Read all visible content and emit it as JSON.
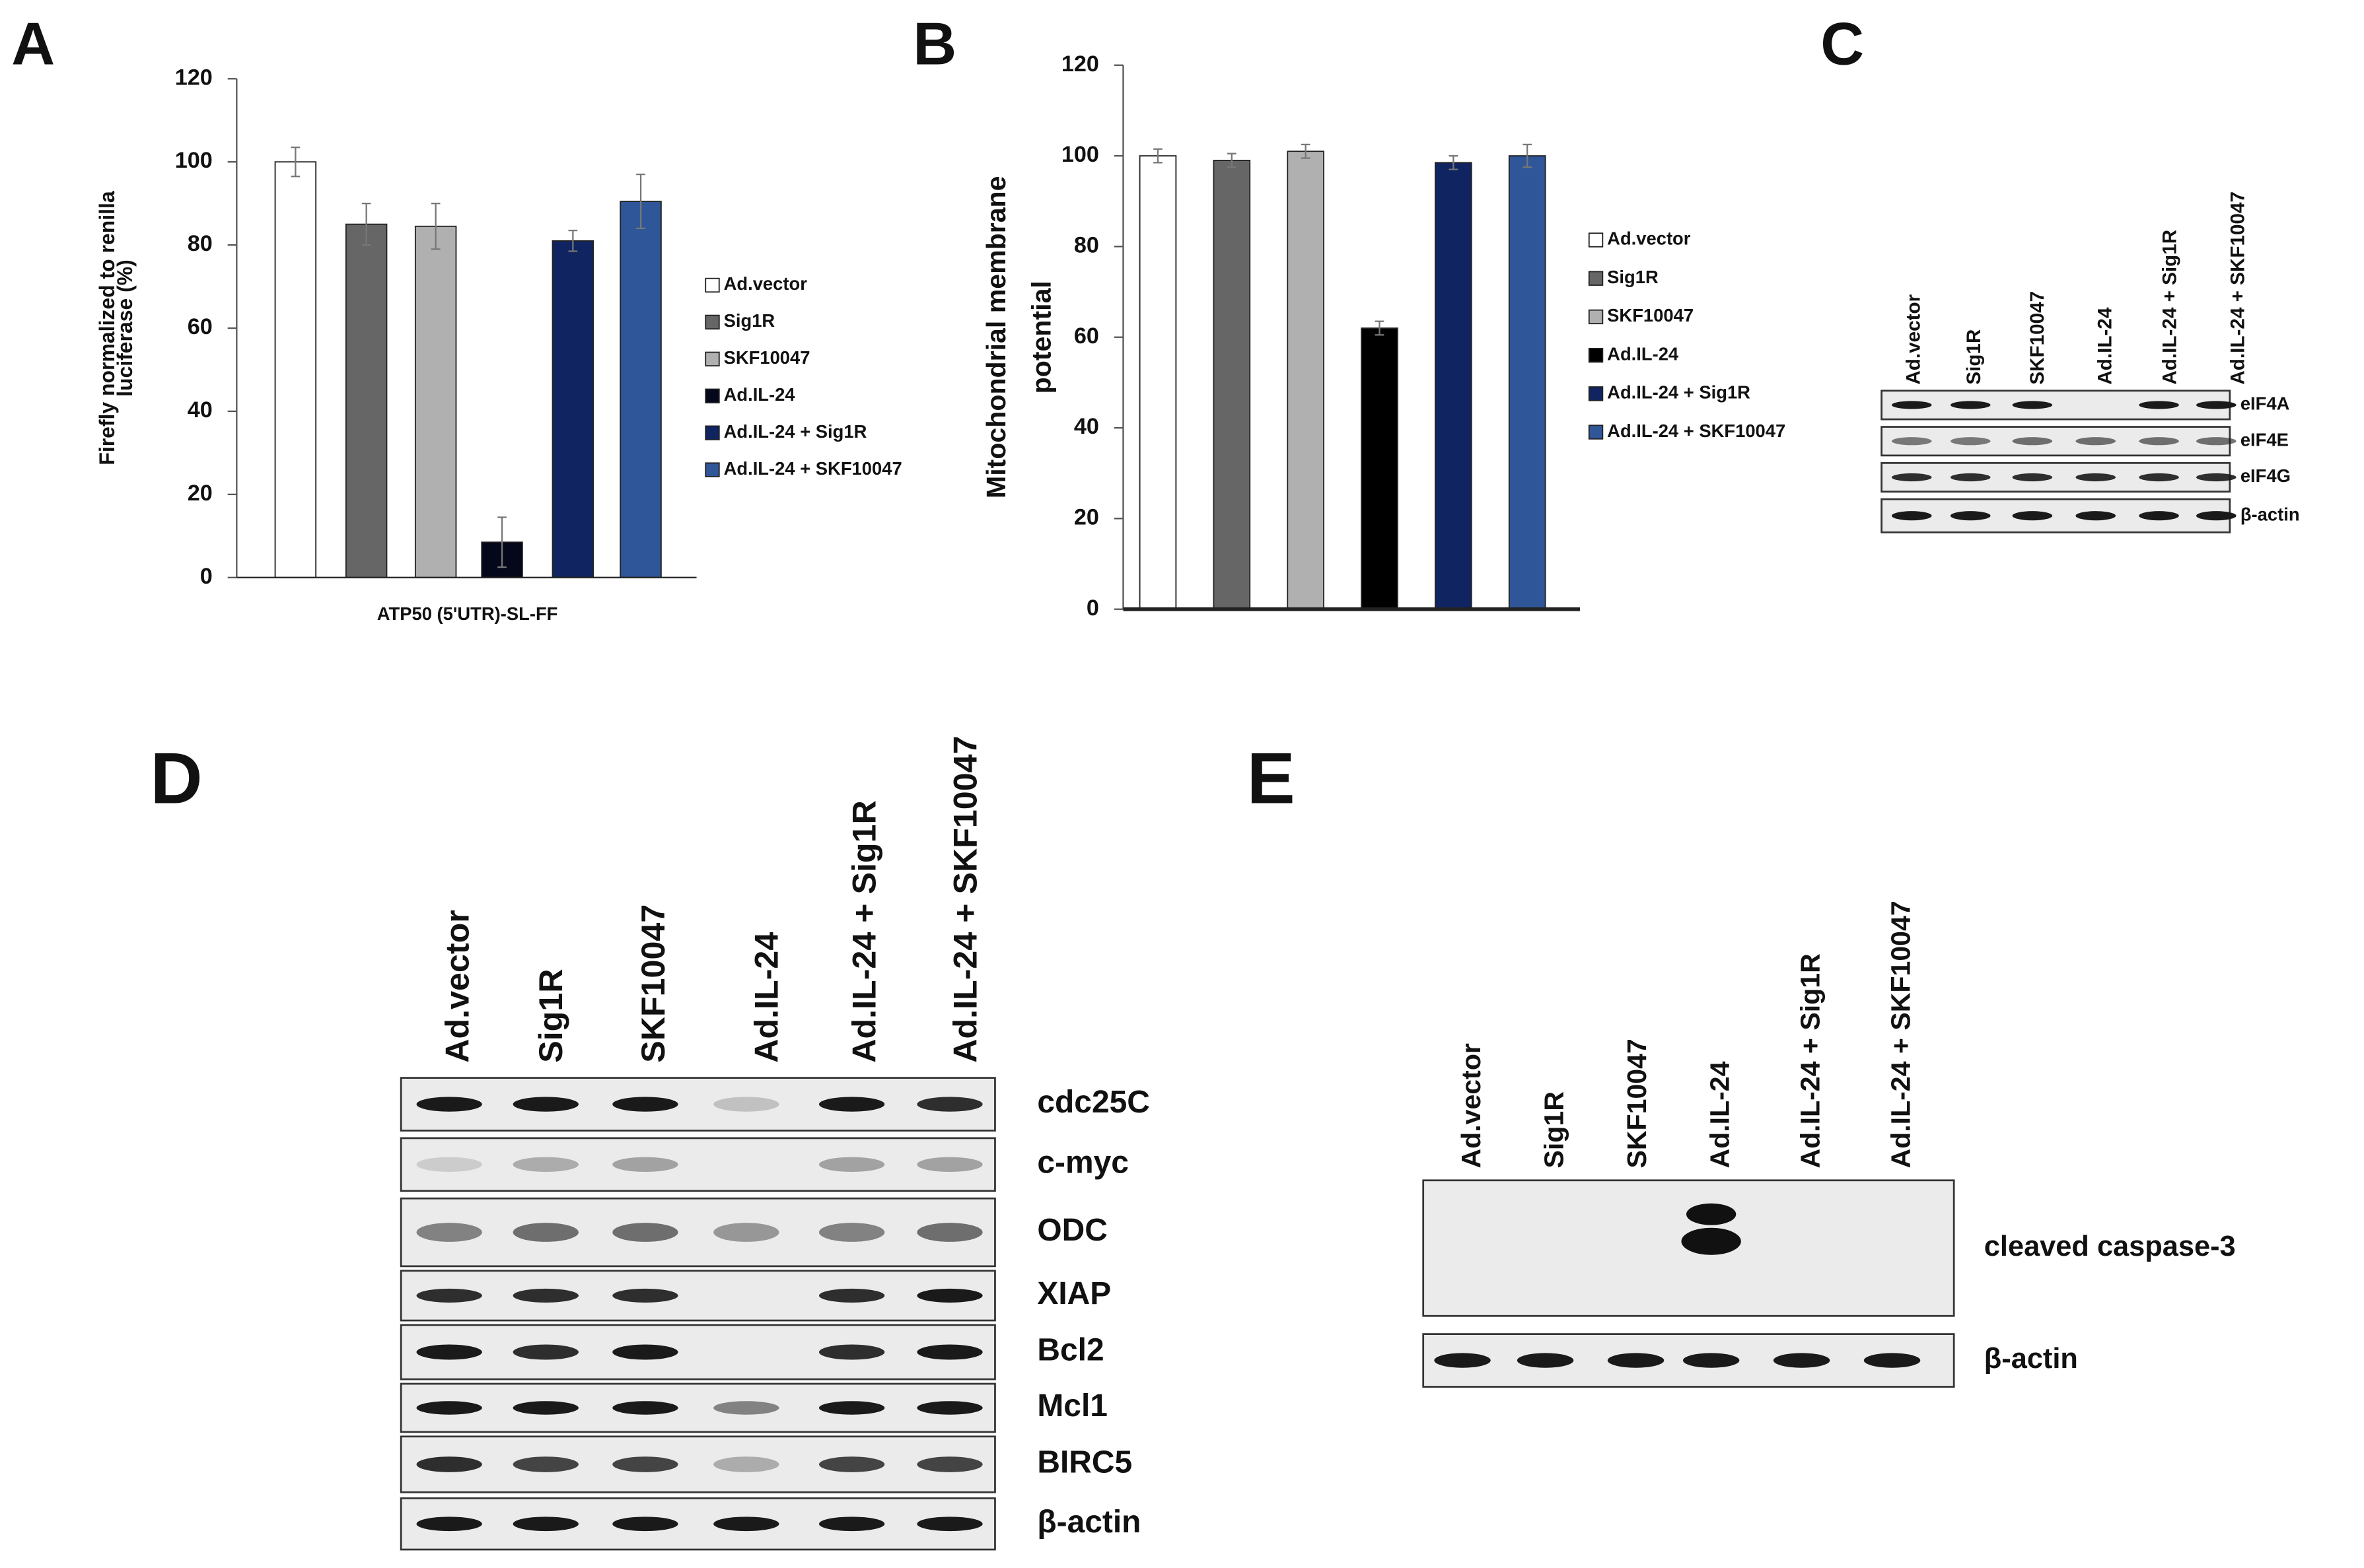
{
  "chart_data": [
    {
      "type": "bar",
      "panel": "A",
      "ylabel": [
        "Firefly normalized to renilla",
        "luciferase  (%)"
      ],
      "xlabel": "ATP50 (5'UTR)-SL-FF",
      "categories": [
        "ATP50 (5'UTR)-SL-FF"
      ],
      "ylim": [
        0,
        120
      ],
      "yticks": [
        0,
        20,
        40,
        60,
        80,
        100,
        120
      ],
      "series": [
        {
          "name": "Ad.vector",
          "color": "#ffffff",
          "values": [
            100
          ],
          "errors": [
            3.5
          ]
        },
        {
          "name": "Sig1R",
          "color": "#666666",
          "values": [
            85
          ],
          "errors": [
            5
          ]
        },
        {
          "name": "SKF10047",
          "color": "#b0b0b0",
          "values": [
            84.5
          ],
          "errors": [
            5.5
          ]
        },
        {
          "name": "Ad.IL-24",
          "color": "#05081a",
          "values": [
            8.5
          ],
          "errors": [
            6
          ]
        },
        {
          "name": "Ad.IL-24 + Sig1R",
          "color": "#0f2461",
          "values": [
            81
          ],
          "errors": [
            2.5
          ]
        },
        {
          "name": "Ad.IL-24 + SKF10047",
          "color": "#2f5699",
          "values": [
            90.5
          ],
          "errors": [
            6.5
          ]
        }
      ]
    },
    {
      "type": "bar",
      "panel": "B",
      "ylabel": [
        "Mitochondrial membrane",
        "potential"
      ],
      "categories": [
        null
      ],
      "ylim": [
        0,
        120
      ],
      "yticks": [
        0,
        20,
        40,
        60,
        80,
        100,
        120
      ],
      "series": [
        {
          "name": "Ad.vector",
          "color": "#ffffff",
          "values": [
            100
          ],
          "errors": [
            1.5
          ]
        },
        {
          "name": "Sig1R",
          "color": "#666666",
          "values": [
            99
          ],
          "errors": [
            1.5
          ]
        },
        {
          "name": "SKF10047",
          "color": "#b0b0b0",
          "values": [
            101
          ],
          "errors": [
            1.5
          ]
        },
        {
          "name": "Ad.IL-24",
          "color": "#000000",
          "values": [
            62
          ],
          "errors": [
            1.5
          ]
        },
        {
          "name": "Ad.IL-24 + Sig1R",
          "color": "#0f2461",
          "values": [
            98.5
          ],
          "errors": [
            1.5
          ]
        },
        {
          "name": "Ad.IL-24 + SKF10047",
          "color": "#2f5699",
          "values": [
            100
          ],
          "errors": [
            2.5
          ]
        }
      ]
    }
  ],
  "blots": [
    {
      "panel": "C",
      "lanes": [
        "Ad.vector",
        "Sig1R",
        "SKF10047",
        "Ad.IL-24",
        "Ad.IL-24 + Sig1R",
        "Ad.IL-24 + SKF10047"
      ],
      "rows": [
        "eIF4A",
        "eIF4E",
        "eIF4G",
        "β-actin"
      ]
    },
    {
      "panel": "D",
      "lanes": [
        "Ad.vector",
        "Sig1R",
        "SKF10047",
        "Ad.IL-24",
        "Ad.IL-24 + Sig1R",
        "Ad.IL-24 + SKF10047"
      ],
      "rows": [
        "cdc25C",
        "c-myc",
        "ODC",
        "XIAP",
        "Bcl2",
        "Mcl1",
        "BIRC5",
        "β-actin"
      ]
    },
    {
      "panel": "E",
      "lanes": [
        "Ad.vector",
        "Sig1R",
        "SKF10047",
        "Ad.IL-24",
        "Ad.IL-24 + Sig1R",
        "Ad.IL-24 + SKF10047"
      ],
      "rows": [
        "cleaved caspase-3",
        "β-actin"
      ]
    }
  ]
}
